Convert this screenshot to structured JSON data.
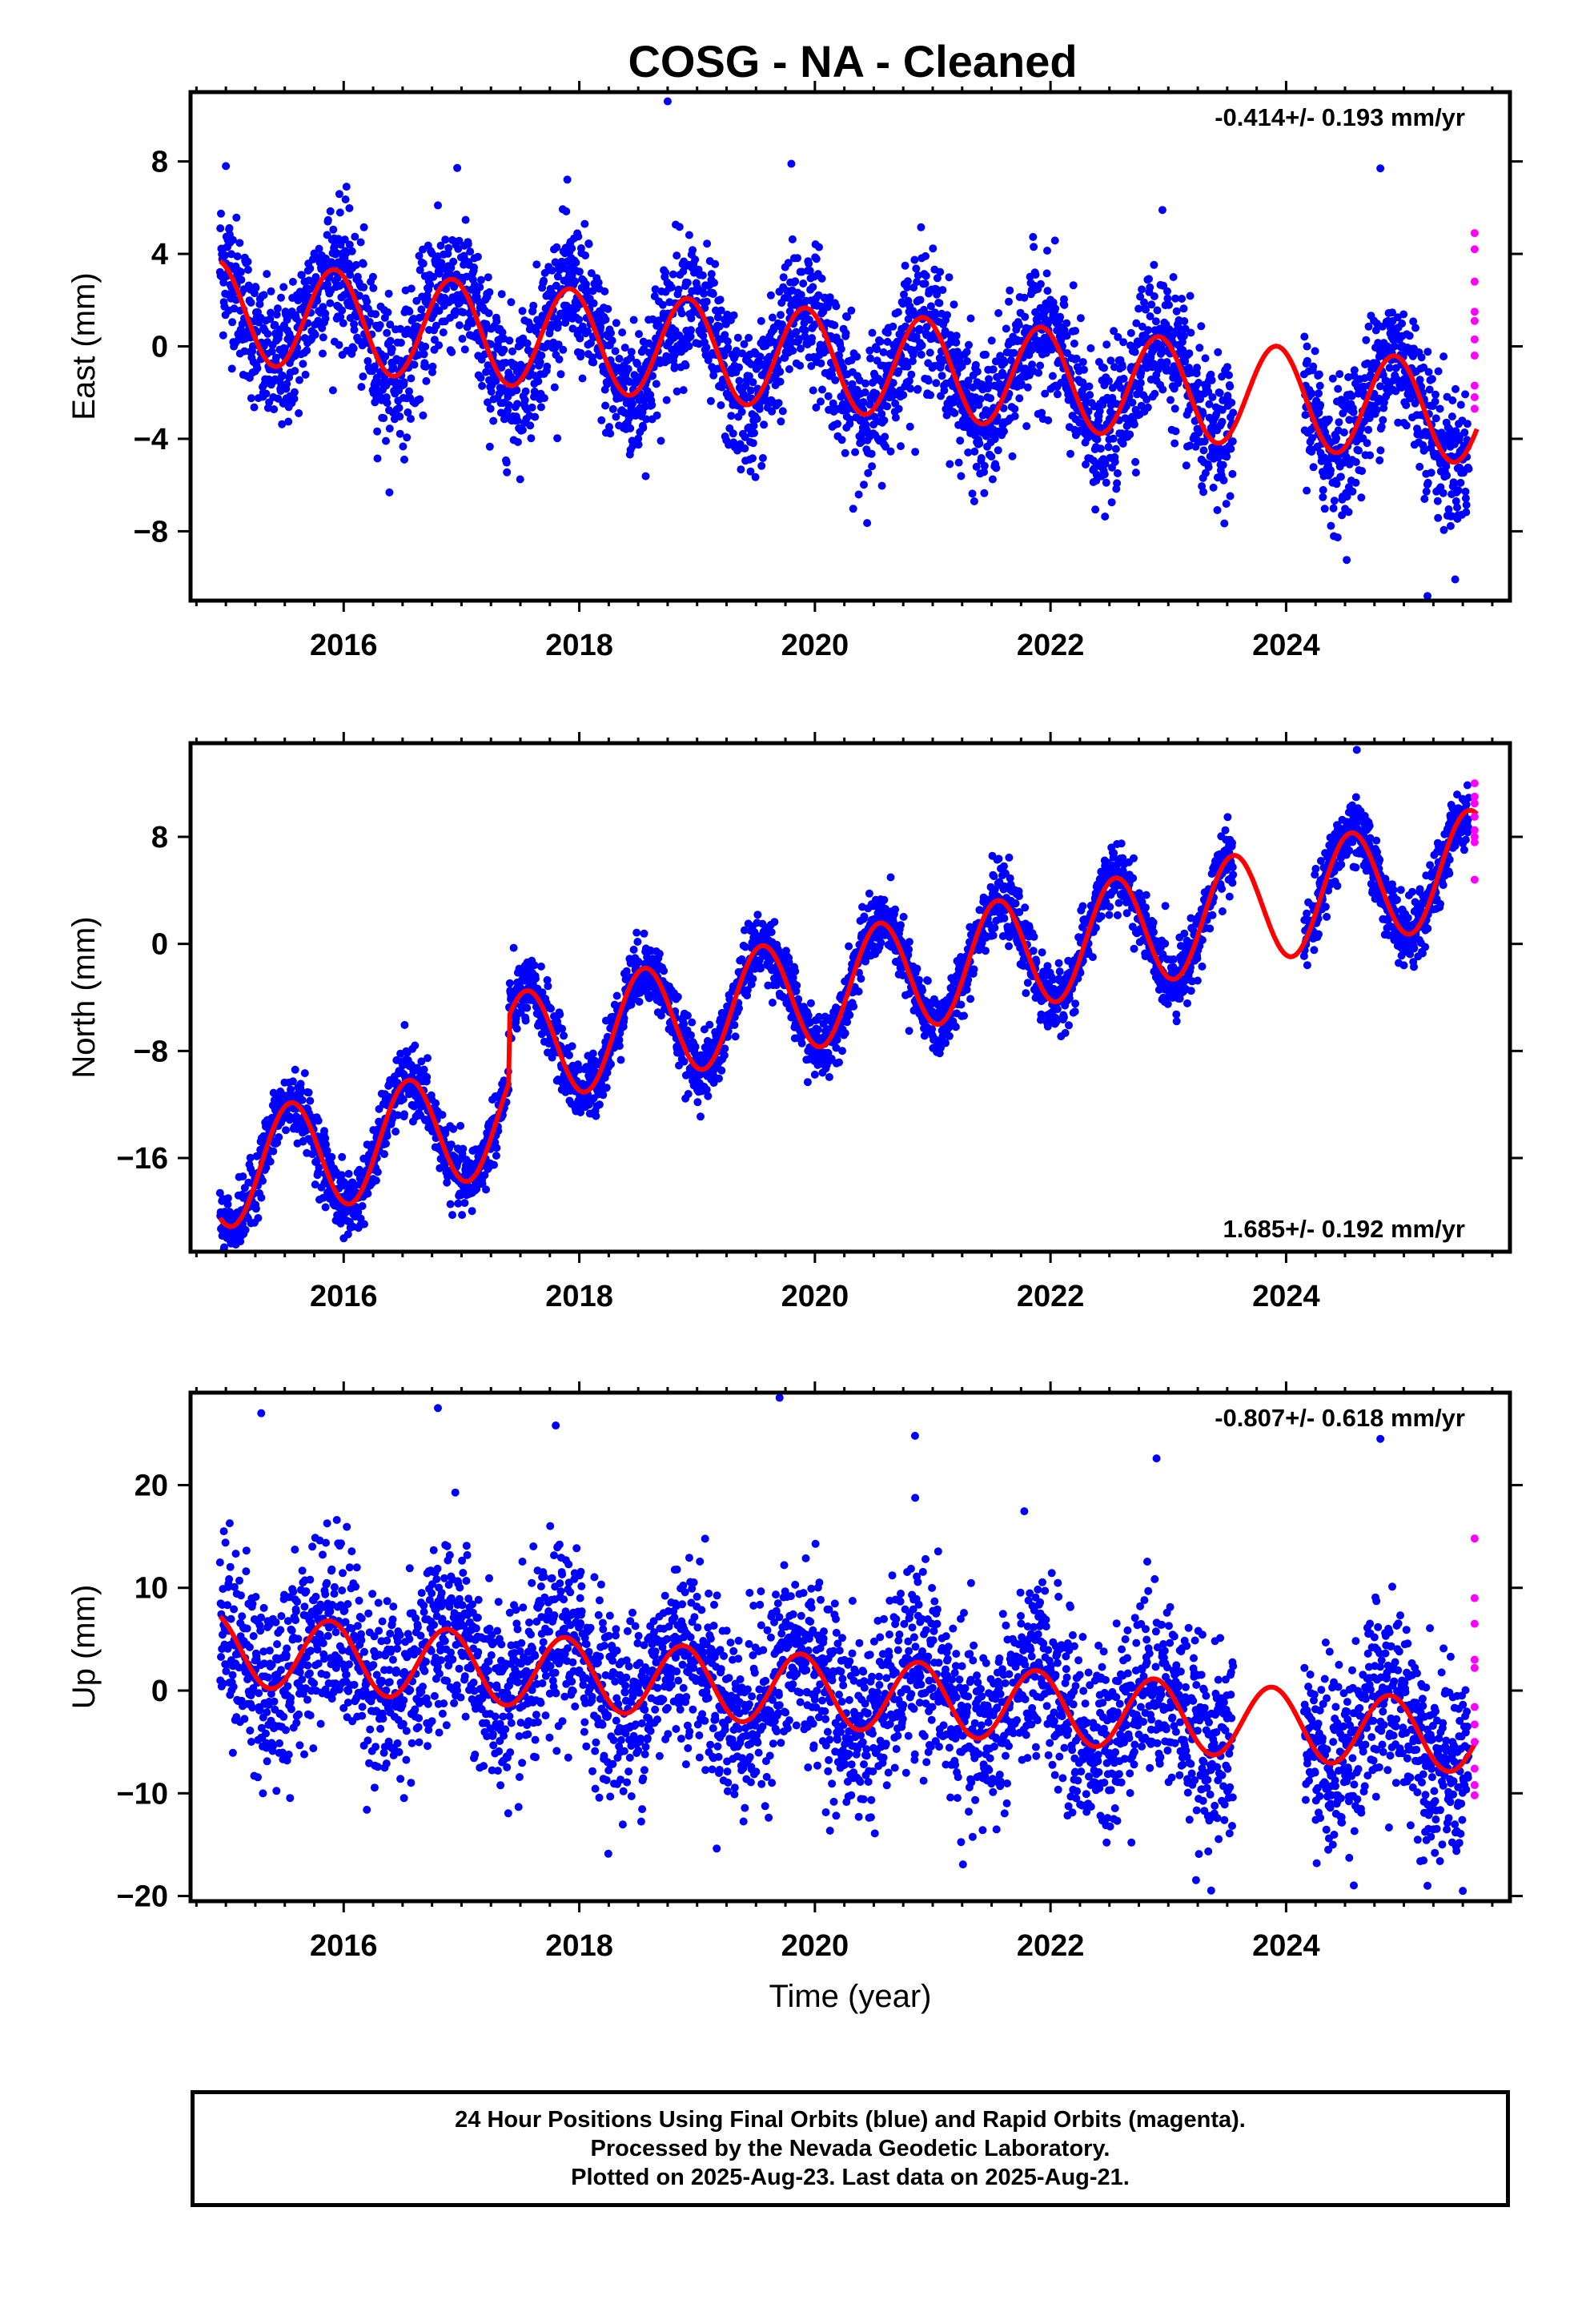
{
  "title": "COSG  - NA - Cleaned",
  "footer": {
    "line1": "24 Hour Positions Using Final Orbits (blue) and Rapid Orbits (magenta).",
    "line2": "Processed by the Nevada Geodetic Laboratory.",
    "line3": "Plotted on 2025-Aug-23. Last data on 2025-Aug-21."
  },
  "colors": {
    "final": "#0000ff",
    "rapid": "#ff00ff",
    "model": "#ff0000",
    "axis": "#000000"
  },
  "chart_data": [
    {
      "type": "scatter",
      "ylabel": "East (mm)",
      "xlabel": "",
      "rate": "-0.414+/- 0.193 mm/yr",
      "rate_position": "top-right",
      "xlim": [
        2014.7,
        2025.9
      ],
      "ylim": [
        -11,
        11
      ],
      "x_ticks": [
        2016,
        2018,
        2020,
        2022,
        2024
      ],
      "y_ticks": [
        -8,
        -4,
        0,
        4,
        8
      ],
      "trend": {
        "value_at_2015": 1.5,
        "slope_mm_per_yr": -0.414,
        "annual_amplitude": 2.2,
        "peak_fraction_of_year": 0.92,
        "scatter": 1.5
      },
      "gaps": [
        [
          2023.55,
          2024.15
        ]
      ],
      "outliers": [
        [
          2015.0,
          7.8
        ],
        [
          2018.75,
          10.6
        ],
        [
          2019.8,
          7.9
        ],
        [
          2024.8,
          7.7
        ],
        [
          2025.2,
          -10.8
        ],
        [
          2016.8,
          6.1
        ],
        [
          2022.95,
          5.9
        ]
      ],
      "rapid": [
        [
          2025.6,
          4.9
        ],
        [
          2025.6,
          4.2
        ],
        [
          2025.6,
          2.8
        ],
        [
          2025.6,
          1.5
        ],
        [
          2025.6,
          1.1
        ],
        [
          2025.6,
          0.3
        ],
        [
          2025.6,
          -0.4
        ],
        [
          2025.6,
          -1.7
        ],
        [
          2025.6,
          -2.2
        ],
        [
          2025.6,
          -2.7
        ]
      ]
    },
    {
      "type": "scatter",
      "ylabel": "North (mm)",
      "xlabel": "",
      "rate": "1.685+/- 0.192 mm/yr",
      "rate_position": "bottom-right",
      "xlim": [
        2014.7,
        2025.9
      ],
      "ylim": [
        -23,
        15
      ],
      "x_ticks": [
        2016,
        2018,
        2020,
        2022,
        2024
      ],
      "y_ticks": [
        -16,
        -8,
        0,
        8
      ],
      "trend": {
        "value_at_2015": -12.0,
        "slope_mm_per_yr": 1.685,
        "annual_amplitude": 4.2,
        "peak_fraction_of_year": 0.55,
        "scatter": 1.2
      },
      "offsets": [
        {
          "until": 2017.4,
          "delta": -5.0
        }
      ],
      "gaps": [
        [
          2023.55,
          2024.15
        ]
      ],
      "outliers": [
        [
          2016.0,
          -22.0
        ],
        [
          2020.8,
          -6.5
        ],
        [
          2024.6,
          14.5
        ]
      ],
      "rapid": [
        [
          2025.6,
          12.0
        ],
        [
          2025.6,
          11.0
        ],
        [
          2025.6,
          10.5
        ],
        [
          2025.6,
          9.5
        ],
        [
          2025.6,
          8.5
        ],
        [
          2025.6,
          8.0
        ],
        [
          2025.6,
          7.6
        ],
        [
          2025.6,
          4.8
        ]
      ]
    },
    {
      "type": "scatter",
      "ylabel": "Up (mm)",
      "xlabel": "Time (year)",
      "rate": "-0.807+/- 0.618 mm/yr",
      "rate_position": "top-right",
      "xlim": [
        2014.7,
        2025.9
      ],
      "ylim": [
        -20.5,
        29
      ],
      "x_ticks": [
        2016,
        2018,
        2020,
        2022,
        2024
      ],
      "y_ticks": [
        -20,
        -10,
        0,
        10,
        20
      ],
      "trend": {
        "value_at_2015": 4.0,
        "slope_mm_per_yr": -0.807,
        "annual_amplitude": 3.5,
        "peak_fraction_of_year": 0.88,
        "scatter": 4.5
      },
      "gaps": [
        [
          2023.55,
          2024.15
        ]
      ],
      "outliers": [
        [
          2019.7,
          28.5
        ],
        [
          2016.8,
          27.5
        ],
        [
          2015.3,
          27.0
        ],
        [
          2017.8,
          25.8
        ],
        [
          2024.8,
          24.5
        ],
        [
          2020.85,
          24.8
        ],
        [
          2022.9,
          22.6
        ],
        [
          2025.2,
          -19.0
        ],
        [
          2025.5,
          -19.5
        ]
      ],
      "rapid": [
        [
          2025.6,
          14.8
        ],
        [
          2025.6,
          9.0
        ],
        [
          2025.6,
          6.5
        ],
        [
          2025.6,
          3.0
        ],
        [
          2025.6,
          2.2
        ],
        [
          2025.6,
          -1.6
        ],
        [
          2025.6,
          -3.3
        ],
        [
          2025.6,
          -5.0
        ],
        [
          2025.6,
          -7.6
        ],
        [
          2025.6,
          -9.2
        ],
        [
          2025.6,
          -10.2
        ]
      ]
    }
  ]
}
